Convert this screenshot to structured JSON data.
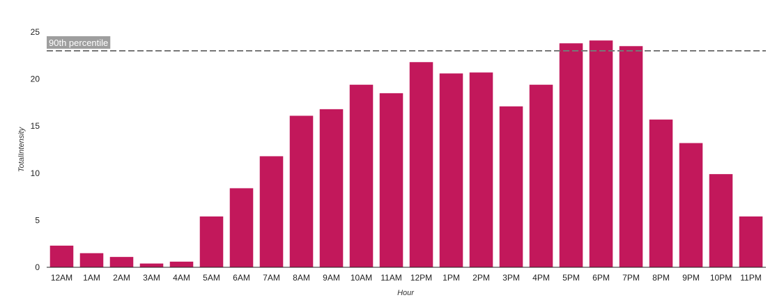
{
  "chart_data": {
    "type": "bar",
    "categories": [
      "12AM",
      "1AM",
      "2AM",
      "3AM",
      "4AM",
      "5AM",
      "6AM",
      "7AM",
      "8AM",
      "9AM",
      "10AM",
      "11AM",
      "12PM",
      "1PM",
      "2PM",
      "3PM",
      "4PM",
      "5PM",
      "6PM",
      "7PM",
      "8PM",
      "9PM",
      "10PM",
      "11PM"
    ],
    "values": [
      2.3,
      1.5,
      1.1,
      0.4,
      0.6,
      5.4,
      8.4,
      11.8,
      16.1,
      16.8,
      19.4,
      18.5,
      21.8,
      20.6,
      20.7,
      17.1,
      19.4,
      23.8,
      24.1,
      23.5,
      15.7,
      13.2,
      9.9,
      5.4
    ],
    "title": "",
    "xlabel": "Hour",
    "ylabel": "TotalIntensity",
    "ylim": [
      0,
      25
    ],
    "yticks": [
      0,
      5,
      10,
      15,
      20,
      25
    ],
    "grid": false,
    "bar_color": "#c2185b",
    "reference_line": {
      "label": "90th percentile",
      "value": 23.0,
      "color": "#777777",
      "style": "dashed"
    }
  }
}
